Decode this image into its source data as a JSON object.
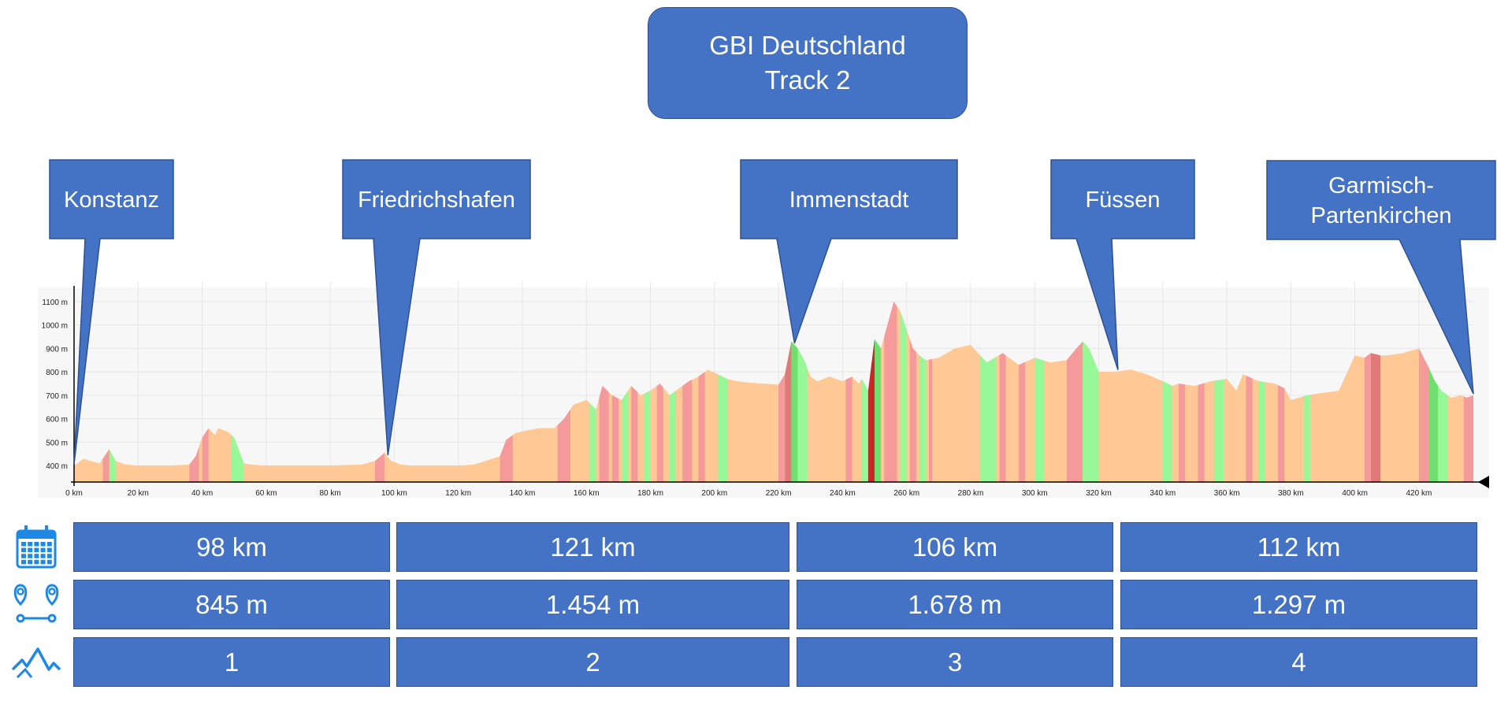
{
  "header": {
    "line1": "GBI Deutschland",
    "line2": "Track 2"
  },
  "callouts": [
    {
      "lines": [
        "Konstanz"
      ],
      "km": 0
    },
    {
      "lines": [
        "Friedrichshafen"
      ],
      "km": 98
    },
    {
      "lines": [
        "Immenstadt"
      ],
      "km": 225
    },
    {
      "lines": [
        "Füssen"
      ],
      "km": 326
    },
    {
      "lines": [
        "Garmisch-",
        "Partenkirchen"
      ],
      "km": 437
    }
  ],
  "chart_data": {
    "type": "area",
    "xlabel": "",
    "ylabel": "",
    "xlim": [
      0,
      437
    ],
    "ylim": [
      330,
      1150
    ],
    "x_ticks": [
      0,
      20,
      40,
      60,
      80,
      100,
      120,
      140,
      160,
      180,
      200,
      220,
      240,
      260,
      280,
      300,
      320,
      340,
      360,
      380,
      400,
      420
    ],
    "x_tick_labels": [
      "0 km",
      "20 km",
      "40 km",
      "60 km",
      "80 km",
      "100 km",
      "120 km",
      "140 km",
      "160 km",
      "180 km",
      "200 km",
      "220 km",
      "240 km",
      "260 km",
      "280 km",
      "300 km",
      "320 km",
      "340 km",
      "360 km",
      "380 km",
      "400 km",
      "420 km"
    ],
    "y_ticks": [
      400,
      500,
      600,
      700,
      800,
      900,
      1000,
      1100
    ],
    "y_tick_labels": [
      "400 m",
      "500 m",
      "600 m",
      "700 m",
      "800 m",
      "900 m",
      "1000 m",
      "1100 m"
    ],
    "grid": true,
    "profile_km": [
      0,
      3,
      5,
      8,
      10,
      11,
      13,
      16,
      20,
      25,
      30,
      36,
      38,
      40,
      42,
      44,
      45,
      48,
      50,
      53,
      55,
      60,
      70,
      80,
      90,
      94,
      97,
      99,
      102,
      105,
      110,
      115,
      120,
      125,
      133,
      135,
      138,
      145,
      150,
      153,
      156,
      160,
      163,
      165,
      168,
      171,
      174,
      177,
      180,
      183,
      186,
      189,
      192,
      195,
      198,
      201,
      204,
      207,
      210,
      215,
      220,
      222,
      224,
      226,
      228,
      230,
      232,
      234,
      236,
      240,
      243,
      245,
      246,
      248,
      250,
      252,
      254,
      256,
      258,
      260,
      262,
      264,
      266,
      270,
      275,
      280,
      283,
      285,
      290,
      295,
      300,
      305,
      310,
      313,
      315,
      317,
      320,
      325,
      330,
      335,
      340,
      343,
      345,
      350,
      355,
      360,
      363,
      365,
      370,
      375,
      378,
      380,
      385,
      390,
      395,
      400,
      403,
      405,
      408,
      410,
      415,
      420,
      423,
      425,
      427,
      430,
      433,
      435,
      437
    ],
    "profile_m": [
      400,
      430,
      420,
      410,
      450,
      470,
      420,
      405,
      400,
      400,
      400,
      405,
      440,
      520,
      560,
      530,
      560,
      545,
      520,
      410,
      405,
      400,
      400,
      400,
      405,
      420,
      455,
      420,
      405,
      400,
      400,
      400,
      400,
      405,
      440,
      510,
      540,
      560,
      560,
      600,
      660,
      680,
      640,
      740,
      700,
      680,
      740,
      700,
      720,
      750,
      700,
      730,
      760,
      780,
      810,
      790,
      770,
      760,
      755,
      750,
      745,
      790,
      930,
      900,
      850,
      780,
      760,
      770,
      780,
      760,
      780,
      750,
      770,
      720,
      940,
      900,
      1000,
      1100,
      1060,
      980,
      900,
      870,
      850,
      860,
      900,
      915,
      870,
      840,
      880,
      830,
      860,
      840,
      850,
      900,
      930,
      900,
      800,
      800,
      810,
      790,
      760,
      740,
      750,
      740,
      760,
      770,
      720,
      790,
      760,
      750,
      730,
      680,
      700,
      710,
      720,
      870,
      860,
      880,
      870,
      870,
      880,
      900,
      820,
      760,
      720,
      690,
      700,
      690,
      700
    ],
    "gradient_bands": [
      {
        "from": 9,
        "to": 11,
        "kind": "down"
      },
      {
        "from": 11,
        "to": 13,
        "kind": "up"
      },
      {
        "from": 36,
        "to": 39,
        "kind": "down"
      },
      {
        "from": 40,
        "to": 42,
        "kind": "down"
      },
      {
        "from": 49,
        "to": 53,
        "kind": "up"
      },
      {
        "from": 94,
        "to": 97,
        "kind": "down"
      },
      {
        "from": 133,
        "to": 137,
        "kind": "down"
      },
      {
        "from": 151,
        "to": 155,
        "kind": "down"
      },
      {
        "from": 161,
        "to": 163,
        "kind": "up"
      },
      {
        "from": 164,
        "to": 167,
        "kind": "down"
      },
      {
        "from": 168,
        "to": 170,
        "kind": "down"
      },
      {
        "from": 171,
        "to": 173,
        "kind": "up"
      },
      {
        "from": 174,
        "to": 176,
        "kind": "down"
      },
      {
        "from": 178,
        "to": 180,
        "kind": "up"
      },
      {
        "from": 182,
        "to": 184,
        "kind": "down"
      },
      {
        "from": 186,
        "to": 188,
        "kind": "up"
      },
      {
        "from": 190,
        "to": 193,
        "kind": "down"
      },
      {
        "from": 195,
        "to": 197,
        "kind": "down"
      },
      {
        "from": 201,
        "to": 204,
        "kind": "up"
      },
      {
        "from": 220,
        "to": 222,
        "kind": "down"
      },
      {
        "from": 222,
        "to": 224,
        "kind": "steep-down"
      },
      {
        "from": 224,
        "to": 226,
        "kind": "steep-up"
      },
      {
        "from": 226,
        "to": 229,
        "kind": "up"
      },
      {
        "from": 241,
        "to": 243,
        "kind": "down"
      },
      {
        "from": 246,
        "to": 248,
        "kind": "up"
      },
      {
        "from": 248,
        "to": 250,
        "kind": "steepest"
      },
      {
        "from": 250,
        "to": 252,
        "kind": "steep-up"
      },
      {
        "from": 253,
        "to": 257,
        "kind": "down"
      },
      {
        "from": 258,
        "to": 260,
        "kind": "up"
      },
      {
        "from": 261,
        "to": 263,
        "kind": "down"
      },
      {
        "from": 264,
        "to": 266,
        "kind": "up"
      },
      {
        "from": 267,
        "to": 268,
        "kind": "down"
      },
      {
        "from": 283,
        "to": 288,
        "kind": "up"
      },
      {
        "from": 289,
        "to": 291,
        "kind": "down"
      },
      {
        "from": 295,
        "to": 297,
        "kind": "down"
      },
      {
        "from": 300,
        "to": 303,
        "kind": "up"
      },
      {
        "from": 310,
        "to": 315,
        "kind": "down"
      },
      {
        "from": 315,
        "to": 320,
        "kind": "up"
      },
      {
        "from": 340,
        "to": 343,
        "kind": "up"
      },
      {
        "from": 345,
        "to": 347,
        "kind": "down"
      },
      {
        "from": 351,
        "to": 353,
        "kind": "down"
      },
      {
        "from": 356,
        "to": 359,
        "kind": "up"
      },
      {
        "from": 366,
        "to": 368,
        "kind": "down"
      },
      {
        "from": 370,
        "to": 372,
        "kind": "up"
      },
      {
        "from": 376,
        "to": 378,
        "kind": "down"
      },
      {
        "from": 384,
        "to": 386,
        "kind": "up"
      },
      {
        "from": 403,
        "to": 405,
        "kind": "down"
      },
      {
        "from": 405,
        "to": 408,
        "kind": "steep-down"
      },
      {
        "from": 420,
        "to": 423,
        "kind": "down"
      },
      {
        "from": 423,
        "to": 426,
        "kind": "steep-up"
      },
      {
        "from": 426,
        "to": 429,
        "kind": "up"
      },
      {
        "from": 434,
        "to": 437,
        "kind": "down"
      }
    ]
  },
  "stats": {
    "rows": [
      {
        "icon": "calendar-icon",
        "values": [
          "98 km",
          "121 km",
          "106 km",
          "112 km"
        ]
      },
      {
        "icon": "route-pins-icon",
        "values": [
          "845 m",
          "1.454 m",
          "1.678 m",
          "1.297 m"
        ]
      },
      {
        "icon": "mountain-icon",
        "values": [
          "1",
          "2",
          "3",
          "4"
        ]
      }
    ]
  },
  "colors": {
    "box": "#4472C4",
    "box_border": "#2F528F",
    "profile_fill": "#FFC894",
    "up": "#98F898",
    "steep_up": "#6FE06F",
    "down": "#F49A9A",
    "steep_down": "#E07A7A",
    "steepest": "#C62828",
    "icon": "#1E88E5"
  }
}
